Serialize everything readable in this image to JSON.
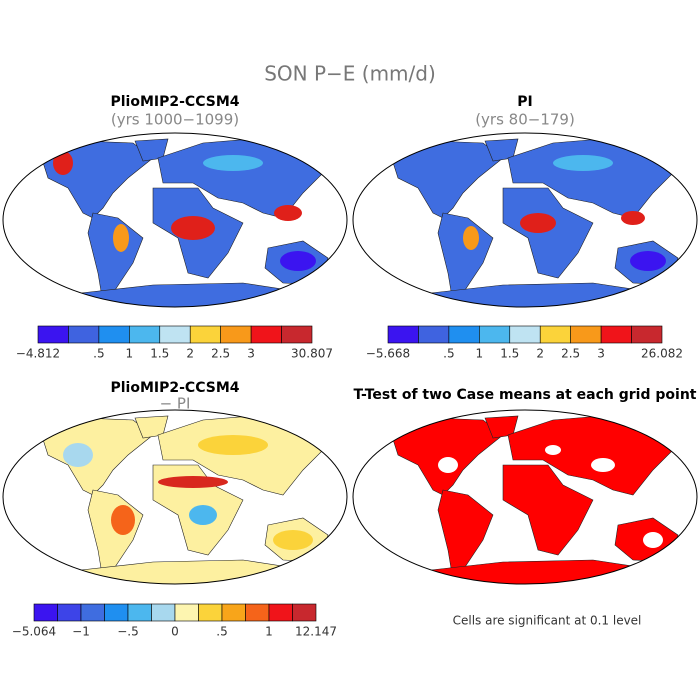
{
  "title": "SON P−E (mm/d)",
  "panels": [
    {
      "title": "PlioMIP2-CCSM4",
      "subtitle": "(yrs 1000−1099)",
      "colorbar": {
        "colors": [
          "#3b14f0",
          "#3f63e0",
          "#1f8ff0",
          "#4cb7ee",
          "#bfe3f2",
          "#fbd33a",
          "#f8991a",
          "#f0141a",
          "#c8282e"
        ],
        "labels": [
          "−4.812",
          ".5",
          "1",
          "1.5",
          "2",
          "2.5",
          "3",
          "30.807"
        ]
      }
    },
    {
      "title": "PI",
      "subtitle": "(yrs 80−179)",
      "colorbar": {
        "colors": [
          "#3b14f0",
          "#3f63e0",
          "#1f8ff0",
          "#4cb7ee",
          "#bfe3f2",
          "#fbd33a",
          "#f8991a",
          "#f0141a",
          "#c8282e"
        ],
        "labels": [
          "−5.668",
          ".5",
          "1",
          "1.5",
          "2",
          "2.5",
          "3",
          "26.082"
        ]
      }
    },
    {
      "title": "PlioMIP2-CCSM4",
      "subtitle": "− PI",
      "colorbar": {
        "colors": [
          "#3b14f0",
          "#3d44e8",
          "#3f6de0",
          "#1f8ff0",
          "#4cb7ee",
          "#a8d8ee",
          "#fdf5b0",
          "#fbd33a",
          "#f8a51a",
          "#f5641a",
          "#f0141a",
          "#c8282e"
        ],
        "labels": [
          "−5.064",
          "−1",
          "−.5",
          "0",
          ".5",
          "1",
          "12.147"
        ]
      }
    },
    {
      "title": "T-Test of two Case means at each grid point",
      "note": "Cells are significant at 0.1 level"
    }
  ]
}
